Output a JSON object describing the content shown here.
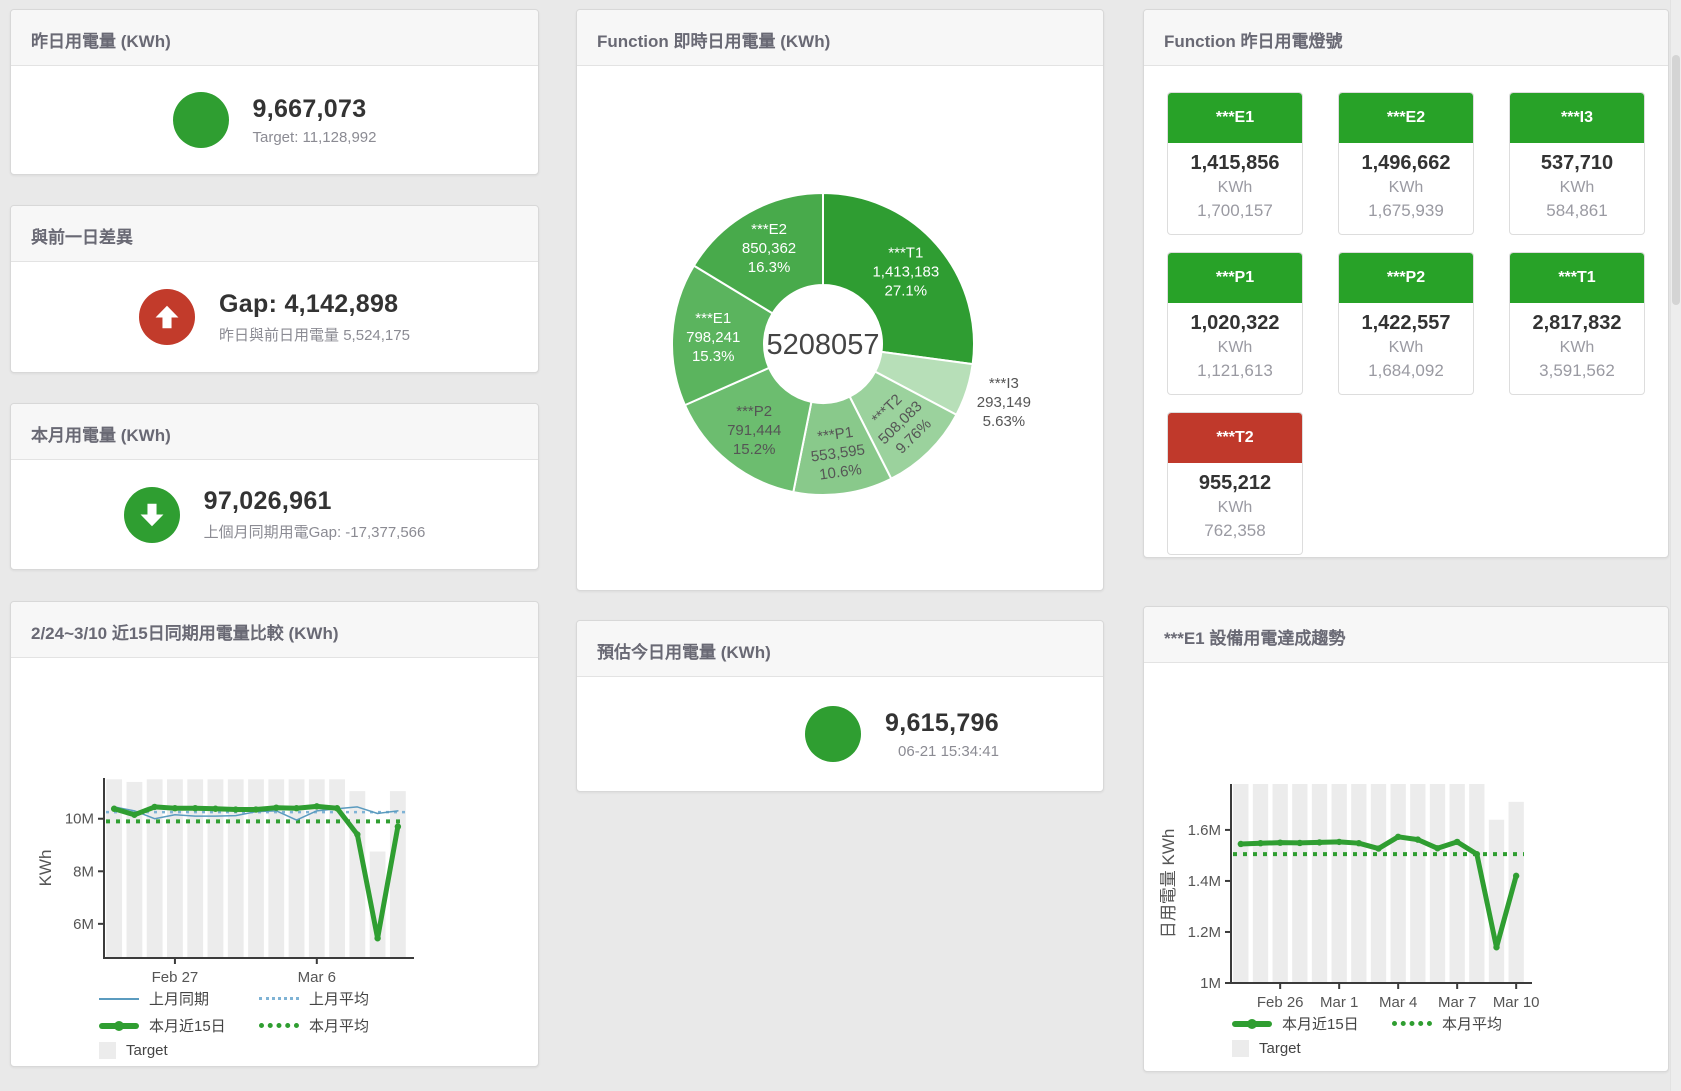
{
  "page": {
    "background": "#e9e9e9"
  },
  "panels": {
    "yesterday": {
      "title": "昨日用電量 (KWh)",
      "value": "9,667,073",
      "subtitle": "Target: 11,128,992",
      "status_color": "#2f9e31"
    },
    "day_gap": {
      "title": "與前一日差異",
      "value": "Gap: 4,142,898",
      "subtitle": "昨日與前日用電量 5,524,175",
      "status_color": "#c23b2b",
      "direction": "up"
    },
    "month": {
      "title": "本月用電量 (KWh)",
      "value": "97,026,961",
      "subtitle": "上個月同期用電Gap: -17,377,566",
      "status_color": "#2f9e31",
      "direction": "down"
    },
    "compare": {
      "title": "2/24~3/10 近15日同期用電量比較 (KWh)"
    },
    "realtime_donut": {
      "title": "Function 即時日用電量 (KWh)"
    },
    "forecast": {
      "title": "預估今日用電量 (KWh)",
      "value": "9,615,796",
      "subtitle": "06-21 15:34:41",
      "status_color": "#2f9e31"
    },
    "lights": {
      "title": "Function 昨日用電燈號",
      "tiles": [
        {
          "label": "***E1",
          "value": "1,415,856",
          "unit": "KWh",
          "target": "1,700,157",
          "color": "#28a228"
        },
        {
          "label": "***E2",
          "value": "1,496,662",
          "unit": "KWh",
          "target": "1,675,939",
          "color": "#28a228"
        },
        {
          "label": "***I3",
          "value": "537,710",
          "unit": "KWh",
          "target": "584,861",
          "color": "#28a228"
        },
        {
          "label": "***P1",
          "value": "1,020,322",
          "unit": "KWh",
          "target": "1,121,613",
          "color": "#28a228"
        },
        {
          "label": "***P2",
          "value": "1,422,557",
          "unit": "KWh",
          "target": "1,684,092",
          "color": "#28a228"
        },
        {
          "label": "***T1",
          "value": "2,817,832",
          "unit": "KWh",
          "target": "3,591,562",
          "color": "#28a228"
        },
        {
          "label": "***T2",
          "value": "955,212",
          "unit": "KWh",
          "target": "762,358",
          "color": "#c0392b"
        }
      ]
    },
    "trend": {
      "title": "***E1 設備用電達成趨勢"
    }
  },
  "legends": {
    "compare": {
      "last_series": "上月同期",
      "last_avg": "上月平均",
      "cur_series": "本月近15日",
      "cur_avg": "本月平均",
      "target": "Target"
    },
    "trend": {
      "cur_series": "本月近15日",
      "cur_avg": "本月平均",
      "target": "Target"
    }
  },
  "chart_data": [
    {
      "type": "pie",
      "title": "Function 即時日用電量 (KWh)",
      "center_total": "5208057",
      "slices": [
        {
          "name": "***T1",
          "value": 1413183,
          "value_label": "1,413,183",
          "pct": 27.1,
          "pct_label": "27.1%",
          "color": "#2f9d32",
          "label_color": "#ffffff"
        },
        {
          "name": "***I3",
          "value": 293149,
          "value_label": "293,149",
          "pct": 5.63,
          "pct_label": "5.63%",
          "color": "#b7dfb8",
          "label_color": "#555555",
          "outside": true
        },
        {
          "name": "***T2",
          "value": 508083,
          "value_label": "508,083",
          "pct": 9.76,
          "pct_label": "9.76%",
          "color": "#9bd29d",
          "label_color": "#555555",
          "rotated": true
        },
        {
          "name": "***P1",
          "value": 553595,
          "value_label": "553,595",
          "pct": 10.6,
          "pct_label": "10.6%",
          "color": "#89c98b",
          "label_color": "#555555",
          "rotated": true
        },
        {
          "name": "***P2",
          "value": 791444,
          "value_label": "791,444",
          "pct": 15.2,
          "pct_label": "15.2%",
          "color": "#6cbd6f",
          "label_color": "#555555"
        },
        {
          "name": "***E1",
          "value": 798241,
          "value_label": "798,241",
          "pct": 15.3,
          "pct_label": "15.3%",
          "color": "#5bb45e",
          "label_color": "#ffffff"
        },
        {
          "name": "***E2",
          "value": 850362,
          "value_label": "850,362",
          "pct": 16.3,
          "pct_label": "16.3%",
          "color": "#48aa4b",
          "label_color": "#ffffff"
        }
      ]
    },
    {
      "type": "bar",
      "subtype": "line+bar",
      "title": "2/24~3/10 近15日同期用電量比較 (KWh)",
      "xlabel": "",
      "ylabel": "KWh",
      "ylim": [
        4.7,
        11.55
      ],
      "unit": "M KWh",
      "grid": false,
      "legend_position": "bottom",
      "yticks": [
        {
          "v": 6,
          "label": "6M"
        },
        {
          "v": 8,
          "label": "8M"
        },
        {
          "v": 10,
          "label": "10M"
        }
      ],
      "xticks": [
        {
          "idx": 3,
          "label": "Feb 27"
        },
        {
          "idx": 10,
          "label": "Mar 6"
        }
      ],
      "x_range": "2/24 ~ 3/10 (15 days)",
      "target_bars": [
        11.5,
        11.4,
        11.5,
        11.5,
        11.5,
        11.5,
        11.5,
        11.5,
        11.5,
        11.5,
        11.5,
        11.5,
        11.05,
        8.75,
        11.05
      ],
      "series": [
        {
          "name": "上月平均",
          "type": "dotted",
          "color": "#7fb3d5",
          "width": 2.5,
          "dash": "3 5",
          "value": 10.25
        },
        {
          "name": "本月平均",
          "type": "dotted",
          "color": "#2f9e31",
          "width": 4,
          "dash": "4 6",
          "value": 9.9
        },
        {
          "name": "上月同期",
          "type": "line",
          "color": "#5b9bbf",
          "width": 1.5,
          "values": [
            10.45,
            10.3,
            10.0,
            10.15,
            10.1,
            10.1,
            10.12,
            10.27,
            10.3,
            9.95,
            10.3,
            10.38,
            10.45,
            10.2,
            10.3
          ]
        },
        {
          "name": "本月近15日",
          "type": "line",
          "color": "#2f9e31",
          "width": 5,
          "dots": true,
          "values": [
            10.38,
            10.15,
            10.45,
            10.4,
            10.4,
            10.38,
            10.35,
            10.35,
            10.42,
            10.4,
            10.47,
            10.4,
            9.4,
            5.45,
            9.7
          ]
        },
        {
          "name": "Target",
          "type": "bar",
          "color": "#ececec"
        }
      ]
    },
    {
      "type": "bar",
      "subtype": "line+bar",
      "title": "***E1 設備用電達成趨勢",
      "xlabel": "",
      "ylabel": "日用電量 KWh",
      "ylim": [
        1.0,
        1.78
      ],
      "unit": "M KWh",
      "grid": false,
      "legend_position": "bottom",
      "yticks": [
        {
          "v": 1.0,
          "label": "1M"
        },
        {
          "v": 1.2,
          "label": "1.2M"
        },
        {
          "v": 1.4,
          "label": "1.4M"
        },
        {
          "v": 1.6,
          "label": "1.6M"
        }
      ],
      "xticks": [
        {
          "idx": 2,
          "label": "Feb 26"
        },
        {
          "idx": 5,
          "label": "Mar 1"
        },
        {
          "idx": 8,
          "label": "Mar 4"
        },
        {
          "idx": 11,
          "label": "Mar 7"
        },
        {
          "idx": 14,
          "label": "Mar 10"
        }
      ],
      "x_range": "2/24 ~ 3/10 (15 days)",
      "target_bars": [
        1.78,
        1.78,
        1.78,
        1.78,
        1.78,
        1.78,
        1.78,
        1.78,
        1.78,
        1.78,
        1.78,
        1.78,
        1.78,
        1.64,
        1.71
      ],
      "series": [
        {
          "name": "本月平均",
          "type": "dotted",
          "color": "#2f9e31",
          "width": 4,
          "dash": "4 6",
          "value": 1.505
        },
        {
          "name": "本月近15日",
          "type": "line",
          "color": "#2f9e31",
          "width": 5,
          "dots": true,
          "values": [
            1.545,
            1.548,
            1.55,
            1.549,
            1.551,
            1.553,
            1.548,
            1.527,
            1.573,
            1.562,
            1.528,
            1.553,
            1.505,
            1.14,
            1.42
          ]
        },
        {
          "name": "Target",
          "type": "bar",
          "color": "#ececec"
        }
      ]
    }
  ]
}
